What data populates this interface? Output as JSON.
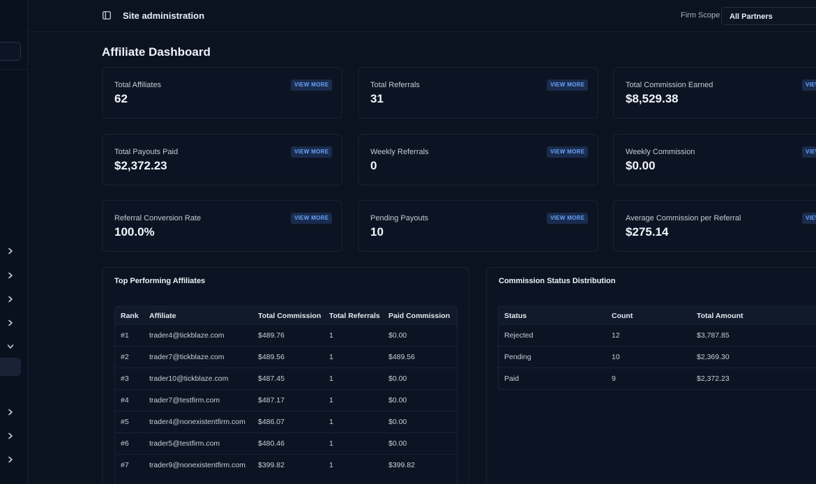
{
  "header": {
    "title": "Site administration",
    "scope_label": "Firm Scope",
    "scope_value": "All Partners"
  },
  "page": {
    "title": "Affiliate Dashboard"
  },
  "cards": [
    {
      "label": "Total Affiliates",
      "value": "62",
      "action": "VIEW MORE"
    },
    {
      "label": "Total Referrals",
      "value": "31",
      "action": "VIEW MORE"
    },
    {
      "label": "Total Commission Earned",
      "value": "$8,529.38",
      "action": "VIEW MORE"
    },
    {
      "label": "Total Payouts Paid",
      "value": "$2,372.23",
      "action": "VIEW MORE"
    },
    {
      "label": "Weekly Referrals",
      "value": "0",
      "action": "VIEW MORE"
    },
    {
      "label": "Weekly Commission",
      "value": "$0.00",
      "action": "VIEW MORE"
    },
    {
      "label": "Referral Conversion Rate",
      "value": "100.0%",
      "action": "VIEW MORE"
    },
    {
      "label": "Pending Payouts",
      "value": "10",
      "action": "VIEW MORE"
    },
    {
      "label": "Average Commission per Referral",
      "value": "$275.14",
      "action": "VIEW MORE"
    }
  ],
  "top_affiliates": {
    "title": "Top Performing Affiliates",
    "columns": [
      "Rank",
      "Affiliate",
      "Total Commission",
      "Total Referrals",
      "Paid Commission"
    ],
    "rows": [
      [
        "#1",
        "trader4@tickblaze.com",
        "$489.76",
        "1",
        "$0.00"
      ],
      [
        "#2",
        "trader7@tickblaze.com",
        "$489.56",
        "1",
        "$489.56"
      ],
      [
        "#3",
        "trader10@tickblaze.com",
        "$487.45",
        "1",
        "$0.00"
      ],
      [
        "#4",
        "trader7@testfirm.com",
        "$487.17",
        "1",
        "$0.00"
      ],
      [
        "#5",
        "trader4@nonexistentfirm.com",
        "$486.07",
        "1",
        "$0.00"
      ],
      [
        "#6",
        "trader5@testfirm.com",
        "$480.46",
        "1",
        "$0.00"
      ],
      [
        "#7",
        "trader9@nonexistentfirm.com",
        "$399.82",
        "1",
        "$399.82"
      ]
    ]
  },
  "commission_status": {
    "title": "Commission Status Distribution",
    "columns": [
      "Status",
      "Count",
      "Total Amount"
    ],
    "rows": [
      [
        "Rejected",
        "12",
        "$3,787.85"
      ],
      [
        "Pending",
        "10",
        "$2,369.30"
      ],
      [
        "Paid",
        "9",
        "$2,372.23"
      ]
    ]
  },
  "icons": {
    "panel_toggle": "panel-toggle-icon",
    "sidebar_chevron": "chevron-right-icon",
    "sidebar_chevron_open": "chevron-down-icon"
  },
  "colors": {
    "background": "#0b1220",
    "card": "#0c1423",
    "accent": "#6aa3ff",
    "badge_bg": "#1a2c4d"
  }
}
